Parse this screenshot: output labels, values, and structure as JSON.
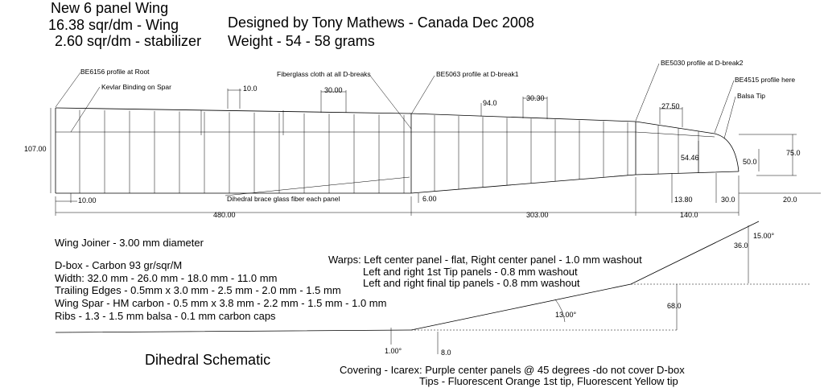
{
  "header": {
    "title": "New 6 panel Wing",
    "wing_area": "16.38 sqr/dm - Wing",
    "stab_area": "2.60 sqr/dm - stabilizer",
    "designer": "Designed by Tony Mathews - Canada  Dec 2008",
    "weight": "Weight - 54 - 58 grams"
  },
  "callouts": {
    "root_profile": "BE6156 profile at Root",
    "kevlar": "Kevlar Binding on Spar",
    "fiberglass": "Fiberglass cloth at all D-breaks",
    "dbreak1": "BE5063 profile at D-break1",
    "dbreak2": "BE5030 profile at D-break2",
    "tip_profile": "BE4515 profile here",
    "balsa_tip": "Balsa Tip",
    "dihedral_brace": "Dihedral brace glass fiber each panel"
  },
  "dimensions": {
    "rib_spacing_a": "10.0",
    "rib_spacing_b": "30.00",
    "chord_mark": "94.0",
    "rib_spacing_c": "30.30",
    "rib_spacing_d": "27.50",
    "root_chord": "107.00",
    "tip_chord_a": "75.0",
    "tip_chord_b": "54.46",
    "tip_chord_c": "50.0",
    "offset_root": "10.00",
    "offset_dbreak1": "6.00",
    "offset_tip_a": "13.80",
    "offset_tip_b": "30.0",
    "offset_tip_c": "20.0",
    "span_center": "480.00",
    "span_mid": "303.00",
    "span_tip": "140.0"
  },
  "specs": {
    "joiner": "Wing Joiner - 3.00 mm diameter",
    "dbox": "D-box - Carbon 93 gr/sqr/M",
    "width": "Width: 32.0 mm - 26.0 mm - 18.0 mm - 11.0 mm",
    "trailing": "Trailing Edges - 0.5mm x 3.0 mm - 2.5 mm - 2.0 mm - 1.5 mm",
    "spar": "Wing Spar - HM carbon - 0.5 mm x 3.8 mm - 2.2 mm - 1.5 mm - 1.0 mm",
    "ribs": "Ribs - 1.3 - 1.5 mm balsa - 0.1 mm carbon caps"
  },
  "warps": {
    "line1": "Warps: Left center panel - flat, Right center panel - 1.0 mm washout",
    "line2": "Left and right 1st Tip panels - 0.8 mm washout",
    "line3": "Left and right final tip panels - 0.8 mm washout"
  },
  "dihedral": {
    "title": "Dihedral Schematic",
    "angle_center": "1.00°",
    "rise_center": "8.0",
    "angle_mid": "13.00°",
    "rise_mid": "68.0",
    "angle_tip": "15.00°",
    "rise_tip": "36.0"
  },
  "covering": {
    "line1": "Covering - Icarex: Purple center panels @ 45 degrees -do not cover D-box",
    "line2": "Tips - Fluorescent Orange 1st tip, Fluorescent Yellow tip"
  }
}
